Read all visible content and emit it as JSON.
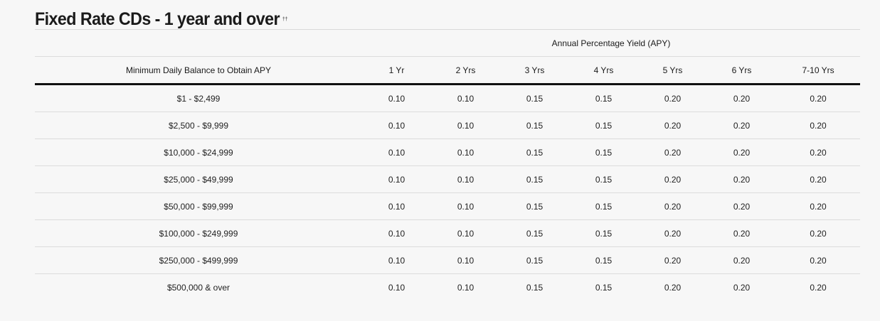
{
  "title": "Fixed Rate CDs - 1 year and over",
  "title_footnote": "††",
  "table": {
    "group_header": "Annual Percentage Yield (APY)",
    "balance_header": "Minimum Daily Balance to Obtain APY",
    "term_headers": [
      "1 Yr",
      "2 Yrs",
      "3 Yrs",
      "4 Yrs",
      "5 Yrs",
      "6 Yrs",
      "7-10 Yrs"
    ],
    "rows": [
      {
        "balance": "$1 - $2,499",
        "rates": [
          "0.10",
          "0.10",
          "0.15",
          "0.15",
          "0.20",
          "0.20",
          "0.20"
        ]
      },
      {
        "balance": "$2,500 - $9,999",
        "rates": [
          "0.10",
          "0.10",
          "0.15",
          "0.15",
          "0.20",
          "0.20",
          "0.20"
        ]
      },
      {
        "balance": "$10,000 - $24,999",
        "rates": [
          "0.10",
          "0.10",
          "0.15",
          "0.15",
          "0.20",
          "0.20",
          "0.20"
        ]
      },
      {
        "balance": "$25,000 - $49,999",
        "rates": [
          "0.10",
          "0.10",
          "0.15",
          "0.15",
          "0.20",
          "0.20",
          "0.20"
        ]
      },
      {
        "balance": "$50,000 - $99,999",
        "rates": [
          "0.10",
          "0.10",
          "0.15",
          "0.15",
          "0.20",
          "0.20",
          "0.20"
        ]
      },
      {
        "balance": "$100,000 - $249,999",
        "rates": [
          "0.10",
          "0.10",
          "0.15",
          "0.15",
          "0.20",
          "0.20",
          "0.20"
        ]
      },
      {
        "balance": "$250,000 - $499,999",
        "rates": [
          "0.10",
          "0.10",
          "0.15",
          "0.15",
          "0.20",
          "0.20",
          "0.20"
        ]
      },
      {
        "balance": "$500,000 & over",
        "rates": [
          "0.10",
          "0.10",
          "0.15",
          "0.15",
          "0.20",
          "0.20",
          "0.20"
        ]
      }
    ]
  }
}
